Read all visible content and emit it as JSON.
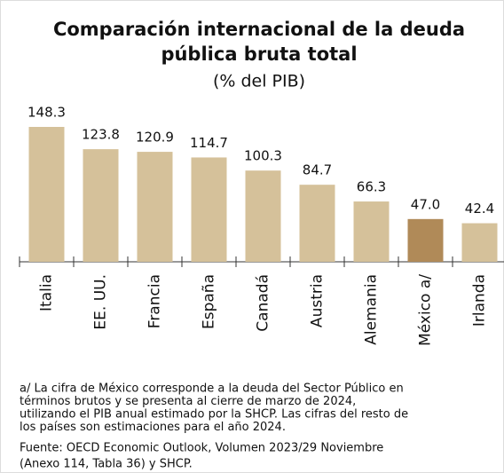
{
  "chart_data": {
    "type": "bar",
    "title_lines": [
      "Comparación internacional de la deuda",
      "pública bruta total"
    ],
    "subtitle": "(% del PIB)",
    "categories": [
      "Italia",
      "EE. UU.",
      "Francia",
      "España",
      "Canadá",
      "Austria",
      "Alemania",
      "México a/",
      "Irlanda"
    ],
    "values": [
      148.3,
      123.8,
      120.9,
      114.7,
      100.3,
      84.7,
      66.3,
      47.0,
      42.4
    ],
    "value_labels": [
      "148.3",
      "123.8",
      "120.9",
      "114.7",
      "100.3",
      "84.7",
      "66.3",
      "47.0",
      "42.4"
    ],
    "colors": [
      "#d5c19a",
      "#d5c19a",
      "#d5c19a",
      "#d5c19a",
      "#d5c19a",
      "#d5c19a",
      "#d5c19a",
      "#b08a58",
      "#d5c19a"
    ],
    "notes": [
      "a/ La cifra de México corresponde a la deuda del Sector Público en",
      "términos brutos y se presenta al cierre de marzo de 2024,",
      "utilizando el PIB anual estimado por la SHCP. Las cifras del resto de",
      "los países son estimaciones para el año 2024."
    ],
    "source": [
      "Fuente: OECD Economic Outlook, Volumen 2023/29 Noviembre",
      "(Anexo 114, Tabla 36) y SHCP."
    ]
  }
}
